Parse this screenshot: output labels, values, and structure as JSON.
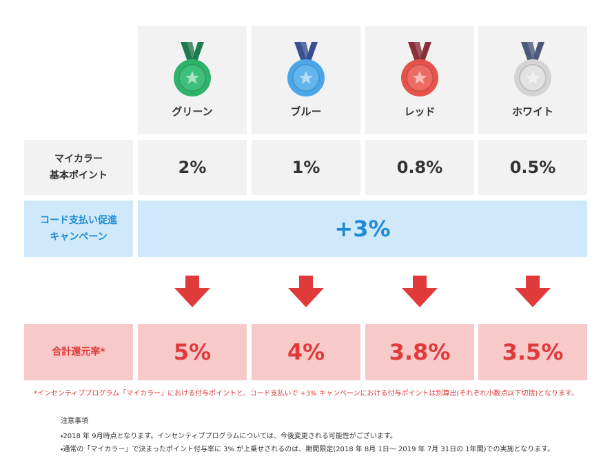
{
  "columns": [
    {
      "name": "グリーン",
      "base": "2%",
      "total": "5%"
    },
    {
      "name": "ブルー",
      "base": "1%",
      "total": "4%"
    },
    {
      "name": "レッド",
      "base": "0.8%",
      "total": "3.8%"
    },
    {
      "name": "ホワイト",
      "base": "0.5%",
      "total": "3.5%"
    }
  ],
  "rows": {
    "base_label": [
      "マイカラー",
      "基本ポイント"
    ],
    "campaign_label": [
      "コード支払い促進",
      "キャンペーン"
    ],
    "campaign_value": "+3%",
    "total_label": "合計還元率*"
  },
  "footnote": "*インセンティブプログラム「マイカラー」における付与ポイントと、コード支払いで +3% キャンペーンにおける付与ポイントは別算出(それぞれ小数点以下切捨)となります。",
  "notes": {
    "title": "注意事項",
    "items": [
      "・2018 年 9月時点となります。インセンティブプログラムについては、今後変更される可能性がございます。",
      "・通常の「マイカラー」で決まったポイント付与率に 3% が上乗せされるのは、期間限定(2018 年 8月 1日〜 2019 年 7月 31日の 1年間)での実施となります。"
    ]
  }
}
